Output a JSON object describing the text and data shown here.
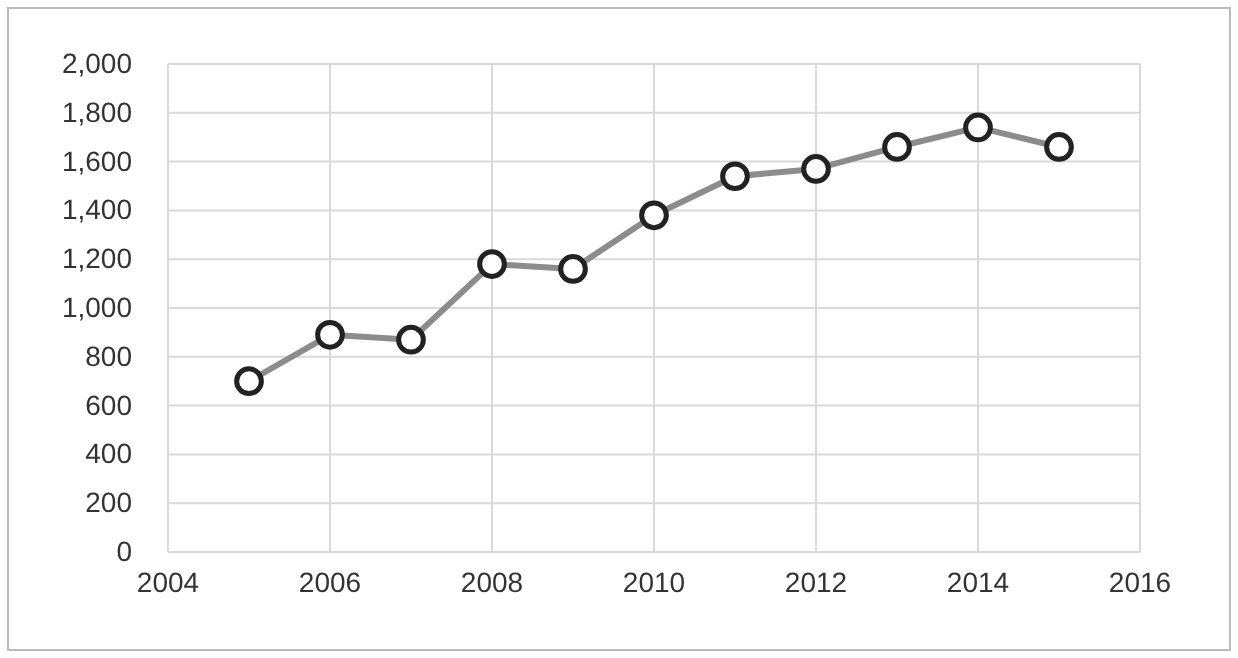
{
  "chart_data": {
    "type": "line",
    "x": [
      2005,
      2006,
      2007,
      2008,
      2009,
      2010,
      2011,
      2012,
      2013,
      2014,
      2015
    ],
    "series": [
      {
        "color": "#8c8c8c",
        "values": [
          700,
          890,
          870,
          1180,
          1160,
          1380,
          1540,
          1570,
          1660,
          1740,
          1660
        ]
      }
    ],
    "xlim": [
      2004,
      2016
    ],
    "xticks": [
      2004,
      2006,
      2008,
      2010,
      2012,
      2014,
      2016
    ],
    "ylim": [
      0,
      2000
    ],
    "yticks": [
      0,
      200,
      400,
      600,
      800,
      {
        "value": 1000,
        "label": "1,000"
      },
      {
        "value": 1200,
        "label": "1,200"
      },
      {
        "value": 1400,
        "label": "1,400"
      },
      {
        "value": 1600,
        "label": "1,600"
      },
      {
        "value": 1800,
        "label": "1,800"
      },
      {
        "value": 2000,
        "label": "2,000"
      }
    ],
    "grid": true,
    "marker": "circle",
    "line_style": "solid"
  }
}
